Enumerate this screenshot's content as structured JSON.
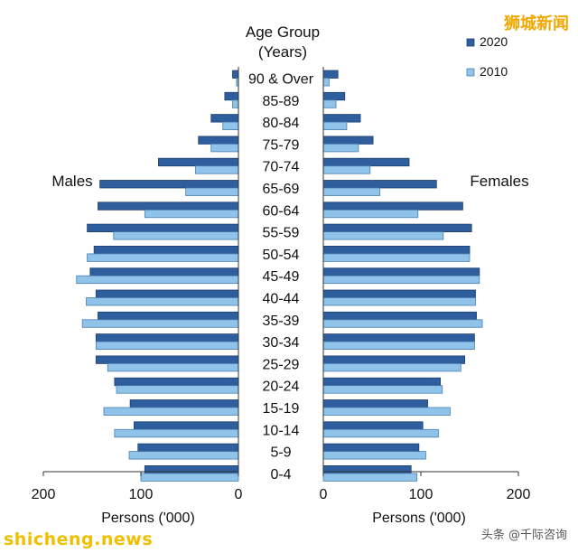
{
  "chart_data": {
    "type": "bar",
    "orientation": "horizontal-population-pyramid",
    "center_title": [
      "Age Group",
      "(Years)"
    ],
    "side_labels": {
      "left": "Males",
      "right": "Females"
    },
    "xlabel": {
      "left": "Persons ('000)",
      "right": "Persons ('000)"
    },
    "xlim": [
      0,
      200
    ],
    "x_ticks": [
      0,
      100,
      200
    ],
    "categories": [
      "90 & Over",
      "85-89",
      "80-84",
      "75-79",
      "70-74",
      "65-69",
      "60-64",
      "55-59",
      "50-54",
      "45-49",
      "40-44",
      "35-39",
      "30-34",
      "25-29",
      "20-24",
      "15-19",
      "10-14",
      "5-9",
      "0-4"
    ],
    "series": [
      {
        "name": "2020",
        "color": "#2e5e9e",
        "males": [
          6,
          14,
          28,
          41,
          82,
          142,
          144,
          155,
          148,
          152,
          146,
          144,
          146,
          146,
          127,
          111,
          107,
          103,
          96
        ],
        "females": [
          15,
          22,
          38,
          51,
          88,
          116,
          143,
          152,
          150,
          160,
          156,
          157,
          155,
          145,
          120,
          107,
          102,
          98,
          90
        ]
      },
      {
        "name": "2010",
        "color": "#8fc3ea",
        "males": [
          2,
          6,
          16,
          28,
          44,
          54,
          96,
          128,
          155,
          166,
          156,
          160,
          146,
          134,
          125,
          138,
          127,
          112,
          100
        ],
        "females": [
          6,
          13,
          24,
          36,
          48,
          58,
          97,
          123,
          150,
          160,
          156,
          163,
          155,
          141,
          122,
          130,
          118,
          105,
          96
        ]
      }
    ],
    "legend_position": "top-right"
  },
  "watermarks": {
    "top_right": "狮城新闻",
    "bottom_left": "shicheng.news",
    "bottom_right": "头条 @千际咨询"
  }
}
